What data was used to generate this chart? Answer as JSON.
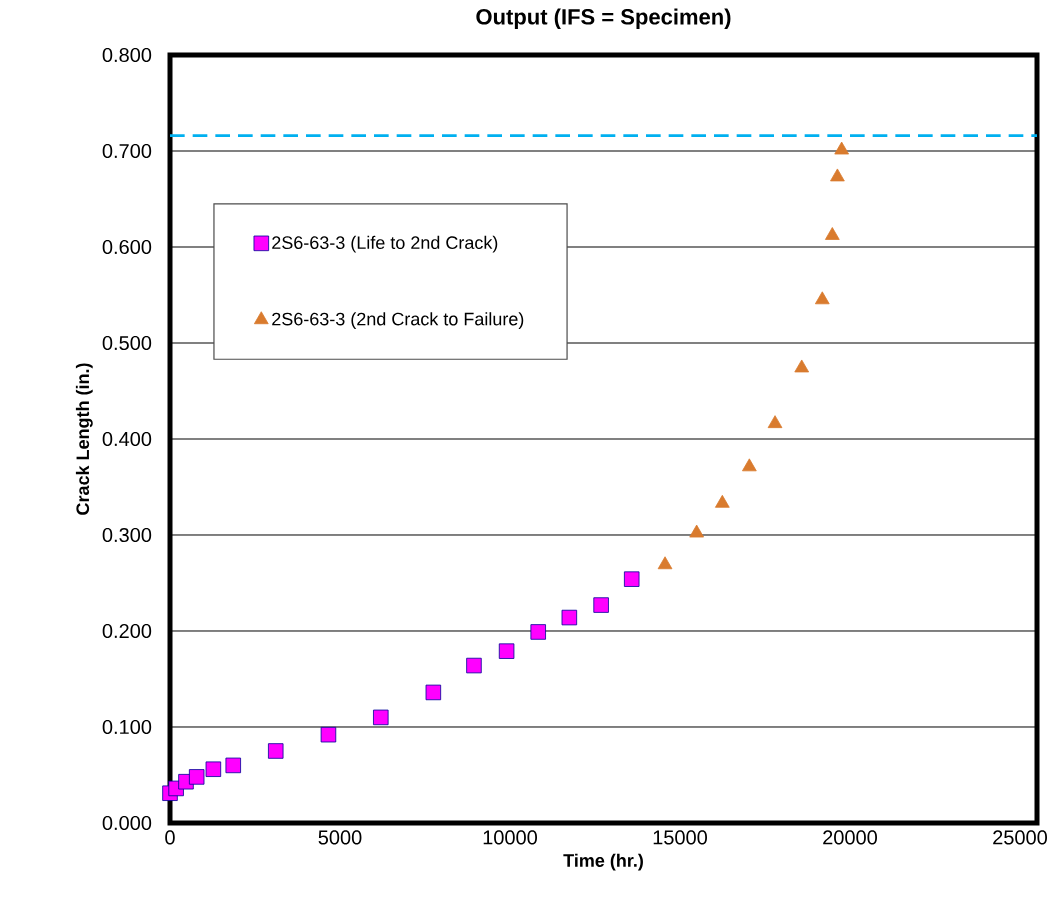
{
  "chart_data": {
    "type": "scatter",
    "title": "Output (IFS = Specimen)",
    "xlabel": "Time (hr.)",
    "ylabel": "Crack Length (in.)",
    "xlim": [
      0,
      25500
    ],
    "ylim": [
      0,
      0.8
    ],
    "xticks": [
      0,
      5000,
      10000,
      15000,
      20000,
      25000
    ],
    "yticks": [
      {
        "value": 0,
        "label": "0.000"
      },
      {
        "value": 0.1,
        "label": "0.100"
      },
      {
        "value": 0.2,
        "label": "0.200"
      },
      {
        "value": 0.3,
        "label": "0.300"
      },
      {
        "value": 0.4,
        "label": "0.400"
      },
      {
        "value": 0.5,
        "label": "0.500"
      },
      {
        "value": 0.6,
        "label": "0.600"
      },
      {
        "value": 0.7,
        "label": "0.700"
      },
      {
        "value": 0.8,
        "label": "0.800"
      }
    ],
    "grid": "y",
    "legend": "top left",
    "series": [
      {
        "name": "2S6-63-3 (Life to 2nd Crack)",
        "color": "#ff00ff",
        "marker": "square",
        "x": [
          0,
          180,
          470,
          785,
          1275,
          1860,
          3110,
          4660,
          6200,
          7745,
          8940,
          9900,
          10830,
          11745,
          12680,
          13580
        ],
        "values": [
          0.031,
          0.036,
          0.043,
          0.048,
          0.056,
          0.06,
          0.075,
          0.092,
          0.11,
          0.136,
          0.164,
          0.179,
          0.199,
          0.214,
          0.227,
          0.254
        ]
      },
      {
        "name": "2S6-63-3 (2nd Crack to Failure)",
        "color": "#d97b2e",
        "marker": "triangle",
        "x": [
          14560,
          15490,
          16245,
          17040,
          17795,
          18580,
          19185,
          19480,
          19630,
          19755
        ],
        "values": [
          0.269,
          0.302,
          0.333,
          0.371,
          0.416,
          0.474,
          0.545,
          0.612,
          0.673,
          0.701
        ]
      }
    ],
    "ref_lines": [
      {
        "axis": "y",
        "value": 0.716,
        "color": "#00b0f0",
        "line_style": "dashed"
      }
    ]
  }
}
